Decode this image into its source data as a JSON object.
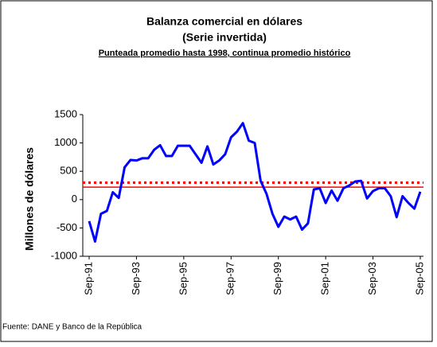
{
  "chart_data": {
    "type": "line",
    "title": "Balanza comercial en dólares",
    "subtitle": "(Serie invertida)",
    "note": "Punteada promedio hasta 1998, continua promedio histórico",
    "y_label": "Millones de dólares",
    "source": "Fuente: DANE y Banco de la República",
    "categories": [
      "Sep-91",
      null,
      null,
      null,
      null,
      null,
      null,
      null,
      "Sep-93",
      null,
      null,
      null,
      null,
      null,
      null,
      null,
      "Sep-95",
      null,
      null,
      null,
      null,
      null,
      null,
      null,
      "Sep-97",
      null,
      null,
      null,
      null,
      null,
      null,
      null,
      "Sep-99",
      null,
      null,
      null,
      null,
      null,
      null,
      null,
      "Sep-01",
      null,
      null,
      null,
      null,
      null,
      null,
      null,
      "Sep-03",
      null,
      null,
      null,
      null,
      null,
      null,
      null,
      "Sep-05"
    ],
    "series": [
      {
        "color": "#0000ff",
        "values": [
          -380,
          -740,
          -250,
          -200,
          130,
          30,
          570,
          700,
          690,
          730,
          730,
          880,
          960,
          770,
          770,
          950,
          950,
          950,
          800,
          650,
          940,
          620,
          690,
          800,
          1100,
          1200,
          1350,
          1040,
          1000,
          330,
          100,
          -250,
          -480,
          -300,
          -350,
          -300,
          -530,
          -420,
          180,
          200,
          -60,
          160,
          -20,
          200,
          250,
          320,
          330,
          20,
          150,
          200,
          200,
          60,
          -310,
          60,
          -60,
          -160,
          140
        ]
      }
    ],
    "reference_lines": [
      {
        "value": 300,
        "style": "dotted",
        "color": "#ff0000"
      },
      {
        "value": 220,
        "style": "solid",
        "color": "#ff0000"
      }
    ],
    "ylim": [
      -1000,
      1500
    ],
    "yticks": [
      -1000,
      -500,
      0,
      500,
      1000,
      1500
    ]
  }
}
